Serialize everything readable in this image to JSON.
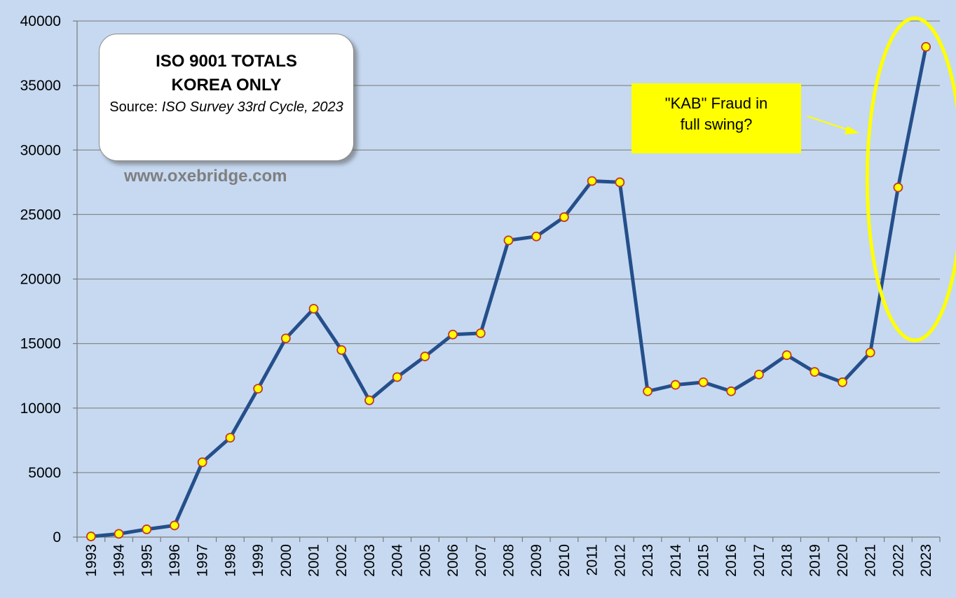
{
  "chart_data": {
    "type": "line",
    "x": [
      "1993",
      "1994",
      "1995",
      "1996",
      "1997",
      "1998",
      "1999",
      "2000",
      "2001",
      "2002",
      "2003",
      "2004",
      "2005",
      "2006",
      "2007",
      "2008",
      "2009",
      "2010",
      "2011",
      "2012",
      "2013",
      "2014",
      "2015",
      "2016",
      "2017",
      "2018",
      "2019",
      "2020",
      "2021",
      "2022",
      "2023"
    ],
    "values": [
      50,
      250,
      600,
      900,
      5800,
      7700,
      11500,
      15400,
      17700,
      14500,
      10600,
      12400,
      14000,
      15700,
      15800,
      23000,
      23300,
      24800,
      27600,
      27500,
      11300,
      11800,
      12000,
      11300,
      12600,
      14100,
      12800,
      12000,
      14300,
      27100,
      38000
    ],
    "ylim": [
      0,
      40000
    ],
    "yticks": [
      "0",
      "5000",
      "10000",
      "15000",
      "20000",
      "25000",
      "30000",
      "35000",
      "40000"
    ],
    "ytick_values": [
      0,
      5000,
      10000,
      15000,
      20000,
      25000,
      30000,
      35000,
      40000
    ],
    "grid": "horizontal",
    "colors": {
      "line": "#254f8a",
      "marker_fill": "#ffff00",
      "marker_edge": "#c0392b",
      "background": "#c6d9f1",
      "grid": "#8a8a8a",
      "ellipse": "#ffff00",
      "callout_bg": "#ffff00",
      "arrow": "#ffff00"
    }
  },
  "title_box": {
    "line1": "ISO 9001 TOTALS",
    "line2": "KOREA ONLY",
    "source_prefix": "Source: ",
    "source_italic": "ISO Survey 33rd Cycle, 2023"
  },
  "website": "www.oxebridge.com",
  "callout": {
    "line1": "\"KAB\" Fraud in",
    "line2": "full swing?"
  }
}
